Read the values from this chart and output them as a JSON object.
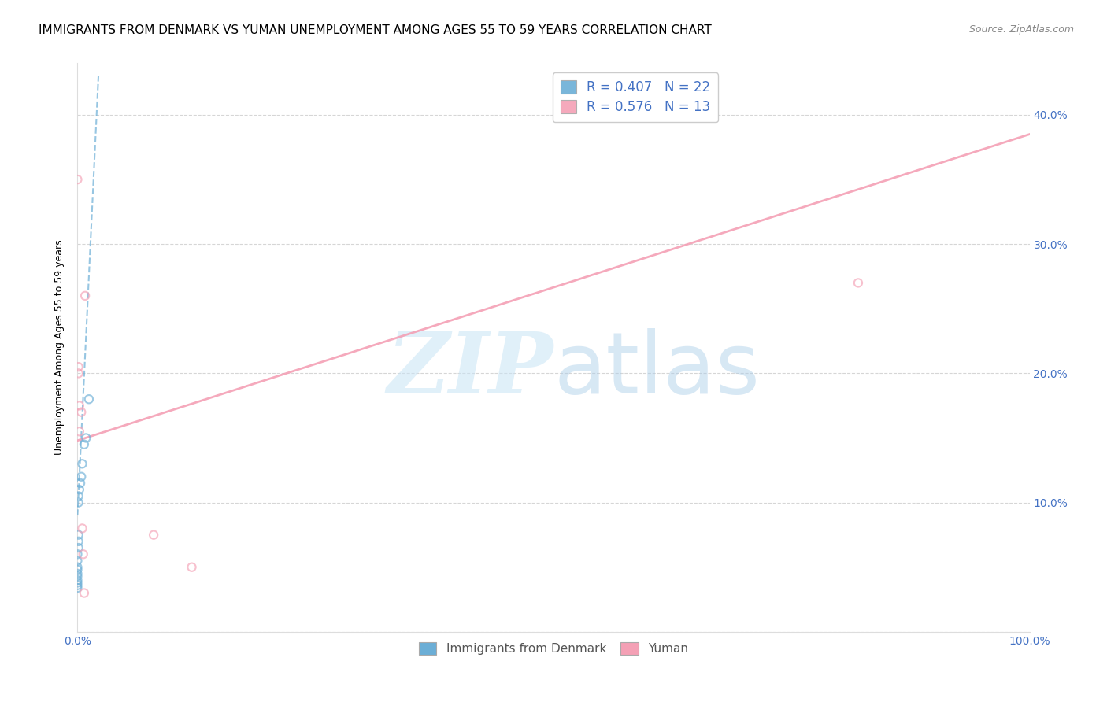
{
  "title": "IMMIGRANTS FROM DENMARK VS YUMAN UNEMPLOYMENT AMONG AGES 55 TO 59 YEARS CORRELATION CHART",
  "source": "Source: ZipAtlas.com",
  "ylabel": "Unemployment Among Ages 55 to 59 years",
  "watermark_zip": "ZIP",
  "watermark_atlas": "atlas",
  "legend1_label": "R = 0.407   N = 22",
  "legend2_label": "R = 0.576   N = 13",
  "legend_bottom1": "Immigrants from Denmark",
  "legend_bottom2": "Yuman",
  "blue_color": "#6baed6",
  "pink_color": "#f4a0b5",
  "blue_scatter": [
    [
      0.0,
      0.06
    ],
    [
      0.0,
      0.055
    ],
    [
      0.0,
      0.05
    ],
    [
      0.0,
      0.048
    ],
    [
      0.0,
      0.045
    ],
    [
      0.0,
      0.043
    ],
    [
      0.0,
      0.04
    ],
    [
      0.0,
      0.038
    ],
    [
      0.0,
      0.036
    ],
    [
      0.0,
      0.034
    ],
    [
      0.001,
      0.065
    ],
    [
      0.001,
      0.07
    ],
    [
      0.001,
      0.075
    ],
    [
      0.001,
      0.1
    ],
    [
      0.001,
      0.105
    ],
    [
      0.002,
      0.11
    ],
    [
      0.003,
      0.115
    ],
    [
      0.004,
      0.12
    ],
    [
      0.005,
      0.13
    ],
    [
      0.007,
      0.145
    ],
    [
      0.009,
      0.15
    ],
    [
      0.012,
      0.18
    ]
  ],
  "pink_scatter": [
    [
      0.0,
      0.35
    ],
    [
      0.001,
      0.205
    ],
    [
      0.001,
      0.2
    ],
    [
      0.002,
      0.175
    ],
    [
      0.002,
      0.155
    ],
    [
      0.004,
      0.17
    ],
    [
      0.005,
      0.08
    ],
    [
      0.006,
      0.06
    ],
    [
      0.007,
      0.03
    ],
    [
      0.008,
      0.26
    ],
    [
      0.08,
      0.075
    ],
    [
      0.82,
      0.27
    ],
    [
      0.12,
      0.05
    ]
  ],
  "blue_line_x": [
    0.0,
    0.022
  ],
  "blue_line_y": [
    0.09,
    0.43
  ],
  "pink_line_x": [
    0.0,
    1.0
  ],
  "pink_line_y": [
    0.148,
    0.385
  ],
  "xlim": [
    0.0,
    1.0
  ],
  "ylim": [
    0.0,
    0.44
  ],
  "xticks": [
    0.0,
    0.1,
    0.2,
    0.3,
    0.4,
    0.5,
    0.6,
    0.7,
    0.8,
    0.9,
    1.0
  ],
  "xtick_labels": [
    "0.0%",
    "",
    "",
    "",
    "",
    "",
    "",
    "",
    "",
    "",
    "100.0%"
  ],
  "yticks": [
    0.0,
    0.1,
    0.2,
    0.3,
    0.4
  ],
  "ytick_labels_right": [
    "",
    "10.0%",
    "20.0%",
    "30.0%",
    "40.0%"
  ],
  "title_fontsize": 11,
  "ylabel_fontsize": 9,
  "tick_fontsize": 10,
  "legend_fontsize": 12,
  "blue_marker_size": 55,
  "pink_marker_size": 55,
  "blue_alpha": 0.65,
  "pink_alpha": 0.65,
  "grid_color": "#cccccc",
  "tick_color": "#4472c4",
  "title_color": "#000000",
  "source_color": "#888888"
}
